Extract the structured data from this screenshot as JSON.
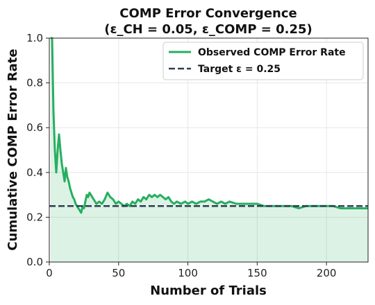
{
  "chart_data": {
    "type": "line",
    "title_line1": "COMP Error Convergence",
    "title_line2": "(ε_CH = 0.05, ε_COMP = 0.25)",
    "xlabel": "Number of Trials",
    "ylabel": "Cumulative COMP Error Rate",
    "xlim": [
      0,
      230
    ],
    "ylim": [
      0,
      1.0
    ],
    "x_ticks": [
      0,
      50,
      100,
      150,
      200
    ],
    "x_tick_labels": [
      "0",
      "50",
      "100",
      "150",
      "200"
    ],
    "y_ticks": [
      0.0,
      0.2,
      0.4,
      0.6,
      0.8,
      1.0
    ],
    "y_tick_labels": [
      "0.0",
      "0.2",
      "0.4",
      "0.6",
      "0.8",
      "1.0"
    ],
    "grid": true,
    "legend_position": "top-right",
    "series": [
      {
        "name": "Observed COMP Error Rate",
        "color": "#27ae60",
        "x": [
          1,
          2,
          3,
          4,
          5,
          6,
          7,
          8,
          9,
          10,
          11,
          12,
          13,
          14,
          15,
          16,
          17,
          18,
          19,
          20,
          21,
          22,
          23,
          24,
          25,
          26,
          27,
          28,
          29,
          30,
          32,
          34,
          36,
          38,
          40,
          42,
          44,
          46,
          48,
          50,
          52,
          54,
          56,
          58,
          60,
          62,
          64,
          66,
          68,
          70,
          72,
          74,
          76,
          78,
          80,
          82,
          84,
          86,
          88,
          90,
          92,
          95,
          98,
          100,
          103,
          106,
          109,
          112,
          115,
          118,
          121,
          124,
          127,
          130,
          135,
          140,
          145,
          150,
          155,
          160,
          165,
          170,
          175,
          180,
          185,
          190,
          195,
          200,
          205,
          210,
          215,
          220,
          225,
          230
        ],
        "y": [
          1.0,
          1.0,
          0.67,
          0.5,
          0.4,
          0.5,
          0.57,
          0.5,
          0.44,
          0.4,
          0.36,
          0.42,
          0.38,
          0.36,
          0.33,
          0.31,
          0.29,
          0.28,
          0.26,
          0.25,
          0.24,
          0.23,
          0.22,
          0.25,
          0.24,
          0.27,
          0.3,
          0.29,
          0.31,
          0.3,
          0.28,
          0.26,
          0.27,
          0.26,
          0.28,
          0.31,
          0.29,
          0.28,
          0.26,
          0.27,
          0.26,
          0.25,
          0.26,
          0.25,
          0.27,
          0.26,
          0.28,
          0.27,
          0.29,
          0.28,
          0.3,
          0.29,
          0.3,
          0.29,
          0.3,
          0.29,
          0.28,
          0.29,
          0.27,
          0.26,
          0.27,
          0.26,
          0.27,
          0.26,
          0.27,
          0.26,
          0.27,
          0.27,
          0.28,
          0.27,
          0.26,
          0.27,
          0.26,
          0.27,
          0.26,
          0.26,
          0.26,
          0.26,
          0.25,
          0.25,
          0.25,
          0.25,
          0.25,
          0.24,
          0.25,
          0.25,
          0.25,
          0.25,
          0.25,
          0.24,
          0.24,
          0.24,
          0.24,
          0.24
        ]
      },
      {
        "name": "Target ε = 0.25",
        "color": "#2c3e50",
        "style": "dashed",
        "y_constant": 0.25
      }
    ]
  }
}
